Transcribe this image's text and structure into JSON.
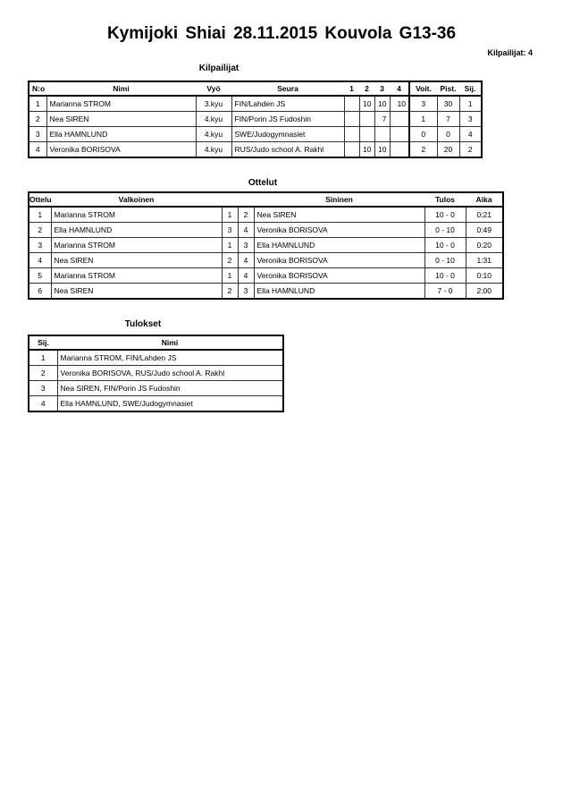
{
  "title": "Kymijoki Shiai  28.11.2015  Kouvola   G13-36",
  "competitor_count": "Kilpailijat: 4",
  "competitors": {
    "heading": "Kilpailijat",
    "headers": [
      "N:o",
      "Nimi",
      "Vyö",
      "Seura",
      "1",
      "2",
      "3",
      "4",
      "Voit.",
      "Pist.",
      "Sij."
    ],
    "rows": [
      [
        "1",
        "Marianna STROM",
        "3.kyu",
        "FIN/Lahden JS",
        "",
        "10",
        "10",
        "10",
        "3",
        "30",
        "1"
      ],
      [
        "2",
        "Nea SIREN",
        "4.kyu",
        "FIN/Porin JS Fudoshin",
        "",
        "",
        "7",
        "",
        "1",
        "7",
        "3"
      ],
      [
        "3",
        "Ella HAMNLUND",
        "4.kyu",
        "SWE/Judogymnasiet",
        "",
        "",
        "",
        "",
        "0",
        "0",
        "4"
      ],
      [
        "4",
        "Veronika BORISOVA",
        "4.kyu",
        "RUS/Judo school A. Rakhl",
        "",
        "10",
        "10",
        "",
        "2",
        "20",
        "2"
      ]
    ]
  },
  "matches": {
    "heading": "Ottelut",
    "headers": [
      "Ottelu",
      "Valkoinen",
      "",
      "",
      "Sininen",
      "Tulos",
      "Aika"
    ],
    "rows": [
      [
        "1",
        "Marianna STROM",
        "1",
        "2",
        "Nea SIREN",
        "10 - 0",
        "0:21"
      ],
      [
        "2",
        "Ella HAMNLUND",
        "3",
        "4",
        "Veronika BORISOVA",
        "0 - 10",
        "0:49"
      ],
      [
        "3",
        "Marianna STROM",
        "1",
        "3",
        "Ella HAMNLUND",
        "10 - 0",
        "0:20"
      ],
      [
        "4",
        "Nea SIREN",
        "2",
        "4",
        "Veronika BORISOVA",
        "0 - 10",
        "1:31"
      ],
      [
        "5",
        "Marianna STROM",
        "1",
        "4",
        "Veronika BORISOVA",
        "10 - 0",
        "0:10"
      ],
      [
        "6",
        "Nea SIREN",
        "2",
        "3",
        "Ella HAMNLUND",
        "7 - 0",
        "2:00"
      ]
    ]
  },
  "results": {
    "heading": "Tulokset",
    "headers": [
      "Sij.",
      "Nimi"
    ],
    "rows": [
      [
        "1",
        "Marianna STROM, FIN/Lahden JS"
      ],
      [
        "2",
        "Veronika BORISOVA, RUS/Judo school A. Rakhl"
      ],
      [
        "3",
        "Nea SIREN, FIN/Porin JS Fudoshin"
      ],
      [
        "4",
        "Ella HAMNLUND, SWE/Judogymnasiet"
      ]
    ]
  }
}
